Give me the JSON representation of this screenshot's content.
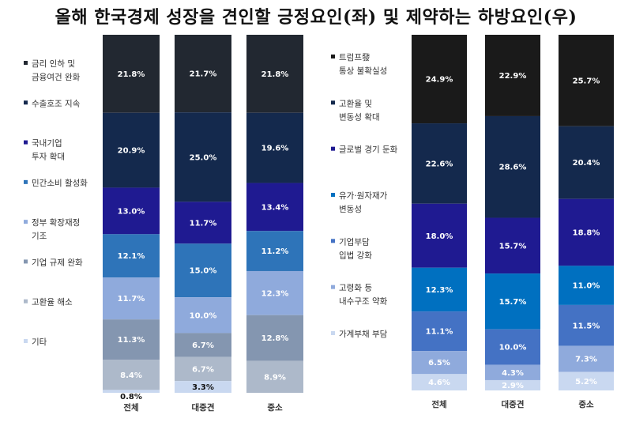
{
  "title": "올해 한국경제 성장을 견인할 긍정요인(좌) 및 제약하는 하방요인(우)",
  "chart_data": [
    {
      "type": "bar",
      "stacked": true,
      "title": "",
      "categories": [
        "전체",
        "대중견",
        "중소"
      ],
      "ylim": [
        0,
        100
      ],
      "series": [
        {
          "name": "금리 인하 및 금융여건 완화",
          "values": [
            21.8,
            21.7,
            21.8
          ],
          "color": "#222831",
          "label_color": "#ffffff"
        },
        {
          "name": "수출호조 지속",
          "values": [
            20.9,
            25.0,
            19.6
          ],
          "color": "#14294d",
          "label_color": "#ffffff"
        },
        {
          "name": "국내기업 투자 확대",
          "values": [
            13.0,
            11.7,
            13.4
          ],
          "color": "#1f1a91",
          "label_color": "#ffffff"
        },
        {
          "name": "민간소비 활성화",
          "values": [
            12.1,
            15.0,
            11.2
          ],
          "color": "#2e74b9",
          "label_color": "#ffffff"
        },
        {
          "name": "정부 확장재정 기조",
          "values": [
            11.7,
            10.0,
            12.3
          ],
          "color": "#8faadc",
          "label_color": "#ffffff"
        },
        {
          "name": "기업 규제 완화",
          "values": [
            11.3,
            6.7,
            12.8
          ],
          "color": "#8496b0",
          "label_color": "#ffffff"
        },
        {
          "name": "고환율 해소",
          "values": [
            8.4,
            6.7,
            8.9
          ],
          "color": "#adb9ca",
          "label_color": "#ffffff"
        },
        {
          "name": "기타",
          "values": [
            0.8,
            3.3,
            0.0
          ],
          "color": "#c9d8f0",
          "label_color": "#111111"
        }
      ],
      "segment_labels": [
        [
          "21.8%",
          "20.9%",
          "13.0%",
          "12.1%",
          "11.7%",
          "11.3%",
          "8.4%",
          "0.8%"
        ],
        [
          "21.7%",
          "25.0%",
          "11.7%",
          "15.0%",
          "10.0%",
          "6.7%",
          "6.7%",
          "3.3%"
        ],
        [
          "21.8%",
          "19.6%",
          "13.4%",
          "11.2%",
          "12.3%",
          "12.8%",
          "8.9%",
          ""
        ]
      ],
      "legend": "left"
    },
    {
      "type": "bar",
      "stacked": true,
      "title": "",
      "categories": [
        "전체",
        "대중견",
        "중소"
      ],
      "ylim": [
        0,
        100
      ],
      "series": [
        {
          "name": "트럼프發 통상 불확실성",
          "values": [
            24.9,
            22.9,
            25.7
          ],
          "color": "#1a1a1a",
          "label_color": "#ffffff"
        },
        {
          "name": "고환율 및 변동성 확대",
          "values": [
            22.6,
            28.6,
            20.4
          ],
          "color": "#14294d",
          "label_color": "#ffffff"
        },
        {
          "name": "글로벌 경기 둔화",
          "values": [
            18.0,
            15.7,
            18.8
          ],
          "color": "#1f1a91",
          "label_color": "#ffffff"
        },
        {
          "name": "유가·원자재가 변동성",
          "values": [
            12.3,
            15.7,
            11.0
          ],
          "color": "#0070c0",
          "label_color": "#ffffff"
        },
        {
          "name": "기업부담 입법 강화",
          "values": [
            11.1,
            10.0,
            11.5
          ],
          "color": "#4472c4",
          "label_color": "#ffffff"
        },
        {
          "name": "고령화 등 내수구조 약화",
          "values": [
            6.5,
            4.3,
            7.3
          ],
          "color": "#8faadc",
          "label_color": "#ffffff"
        },
        {
          "name": "가계부채 부담",
          "values": [
            4.6,
            2.9,
            5.2
          ],
          "color": "#c9d8f0",
          "label_color": "#ffffff"
        }
      ],
      "segment_labels": [
        [
          "24.9%",
          "22.6%",
          "18.0%",
          "12.3%",
          "11.1%",
          "6.5%",
          "4.6%"
        ],
        [
          "22.9%",
          "28.6%",
          "15.7%",
          "15.7%",
          "10.0%",
          "4.3%",
          "2.9%"
        ],
        [
          "25.7%",
          "20.4%",
          "18.8%",
          "11.0%",
          "11.5%",
          "7.3%",
          "5.2%"
        ]
      ],
      "legend": "left"
    }
  ]
}
